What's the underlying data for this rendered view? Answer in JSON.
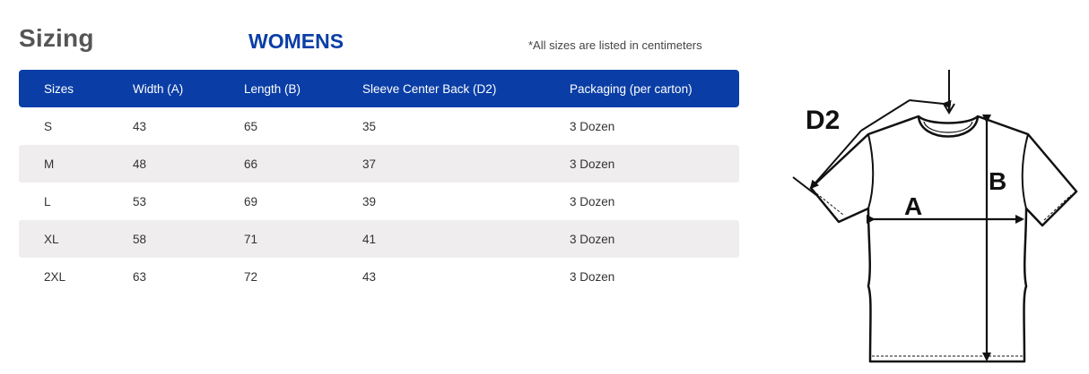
{
  "header": {
    "title": "Sizing",
    "subtitle": "WOMENS",
    "note": "*All sizes are listed in centimeters"
  },
  "table": {
    "columns": [
      "Sizes",
      "Width (A)",
      "Length (B)",
      "Sleeve Center Back (D2)",
      "Packaging (per carton)"
    ],
    "rows": [
      [
        "S",
        "43",
        "65",
        "35",
        "3 Dozen"
      ],
      [
        "M",
        "48",
        "66",
        "37",
        "3 Dozen"
      ],
      [
        "L",
        "53",
        "69",
        "39",
        "3 Dozen"
      ],
      [
        "XL",
        "58",
        "71",
        "41",
        "3 Dozen"
      ],
      [
        "2XL",
        "63",
        "72",
        "43",
        "3 Dozen"
      ]
    ]
  },
  "diagram": {
    "labels": {
      "d2": "D2",
      "a": "A",
      "b": "B"
    }
  },
  "colors": {
    "brand_blue": "#0a3ea6",
    "row_alt": "#efeded",
    "heading_gray": "#555555"
  }
}
